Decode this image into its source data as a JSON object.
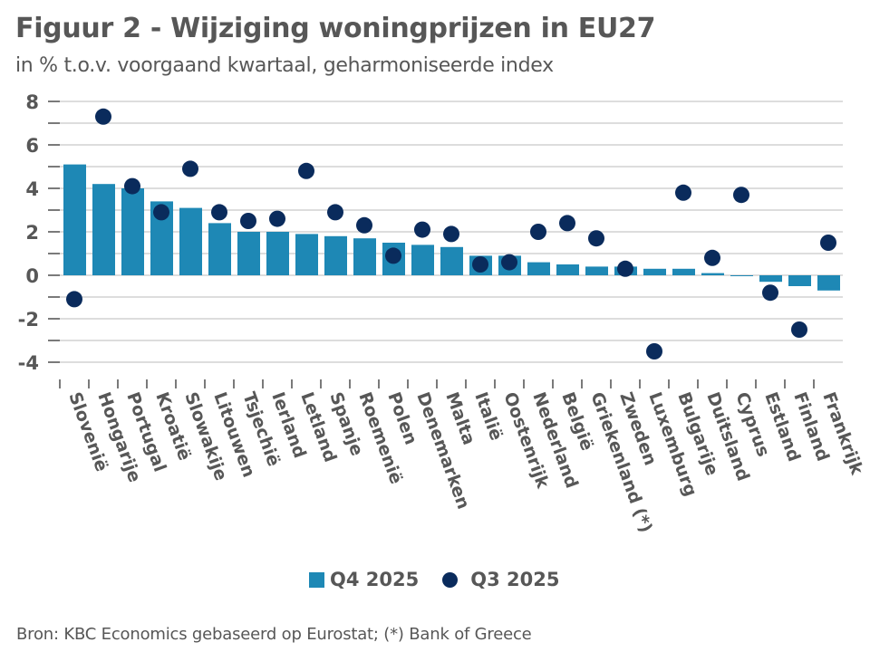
{
  "header": {
    "title": "Figuur 2 - Wijziging woningprijzen in EU27",
    "subtitle": "in % t.o.v. voorgaand kwartaal, geharmoniseerde index"
  },
  "colors": {
    "bar": "#1e88b5",
    "dot": "#0a2b5c",
    "text": "#575757",
    "grid": "#dddddd"
  },
  "chart_data": {
    "type": "bar",
    "title": "Figuur 2 - Wijziging woningprijzen in EU27",
    "subtitle": "in % t.o.v. voorgaand kwartaal, geharmoniseerde index",
    "xlabel": "",
    "ylabel": "",
    "ylim": [
      -4.8,
      8.2
    ],
    "yticks": [
      -4,
      -2,
      0,
      2,
      4,
      6,
      8
    ],
    "ytick_labels": [
      "-4",
      "-2",
      "0",
      "2",
      "4",
      "6",
      "8"
    ],
    "grid": true,
    "grid_step": 1,
    "legend_position": "bottom",
    "categories": [
      "Slovenië",
      "Hongarije",
      "Portugal",
      "Kroatië",
      "Slowakije",
      "Litouwen",
      "Tsjechië",
      "Ierland",
      "Letland",
      "Spanje",
      "Roemenië",
      "Polen",
      "Denemarken",
      "Malta",
      "Italië",
      "Oostenrijk",
      "Nederland",
      "België",
      "Griekenland (*)",
      "Zweden",
      "Luxemburg",
      "Bulgarije",
      "Duitsland",
      "Cyprus",
      "Estland",
      "Finland",
      "Frankrijk"
    ],
    "series": [
      {
        "name": "Q4 2025",
        "mark": "bar",
        "values": [
          5.1,
          4.2,
          4.0,
          3.4,
          3.1,
          2.4,
          2.0,
          2.0,
          1.9,
          1.8,
          1.7,
          1.5,
          1.4,
          1.3,
          0.9,
          0.9,
          0.6,
          0.5,
          0.4,
          0.4,
          0.3,
          0.3,
          0.1,
          0.0,
          -0.3,
          -0.5,
          -0.7
        ]
      },
      {
        "name": "Q3 2025",
        "mark": "dot",
        "values": [
          -1.1,
          7.3,
          4.1,
          2.9,
          4.9,
          2.9,
          2.5,
          2.6,
          4.8,
          2.9,
          2.3,
          0.9,
          2.1,
          1.9,
          0.5,
          0.6,
          2.0,
          2.4,
          1.7,
          0.3,
          -3.5,
          3.8,
          0.8,
          3.7,
          -0.8,
          -2.5,
          1.5
        ]
      }
    ]
  },
  "legend": {
    "items": [
      {
        "label": "Q4 2025",
        "marker": "square"
      },
      {
        "label": "Q3 2025",
        "marker": "circle"
      }
    ]
  },
  "footer": {
    "source": "Bron: KBC Economics gebaseerd op Eurostat; (*) Bank of Greece"
  }
}
